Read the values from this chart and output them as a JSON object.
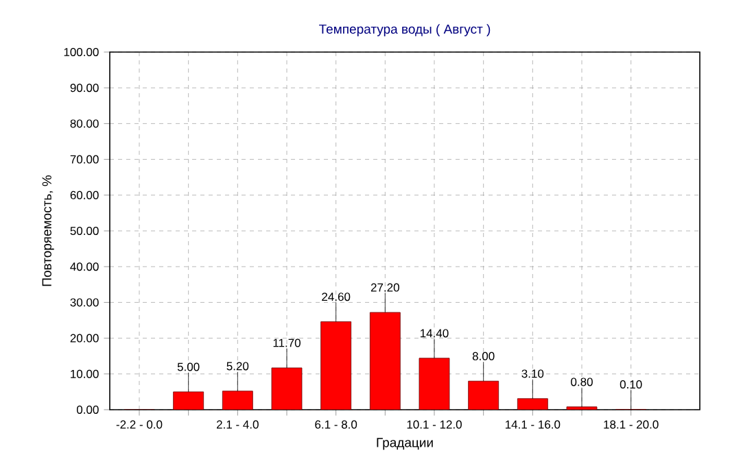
{
  "chart_data": {
    "type": "bar",
    "title": "Температура воды    ( Август )",
    "xlabel": "Градации",
    "ylabel": "Повторяемость, %",
    "categories": [
      "-2.2 - 0.0",
      null,
      "2.1 - 4.0",
      null,
      "6.1 - 8.0",
      null,
      "10.1 - 12.0",
      null,
      "14.1 - 16.0",
      null,
      "18.1 - 20.0"
    ],
    "values": [
      0,
      5.0,
      5.2,
      11.7,
      24.6,
      27.2,
      14.4,
      8.0,
      3.1,
      0.8,
      0.1
    ],
    "value_labels": [
      null,
      "5.00",
      "5.20",
      "11.70",
      "24.60",
      "27.20",
      "14.40",
      "8.00",
      "3.10",
      "0.80",
      "0.10"
    ],
    "color": "#ff0000",
    "ylim": [
      0,
      100
    ],
    "yticks": [
      {
        "value": 0,
        "label": "0.00"
      },
      {
        "value": 10,
        "label": "10.00"
      },
      {
        "value": 20,
        "label": "20.00"
      },
      {
        "value": 30,
        "label": "30.00"
      },
      {
        "value": 40,
        "label": "40.00"
      },
      {
        "value": 50,
        "label": "50.00"
      },
      {
        "value": 60,
        "label": "60.00"
      },
      {
        "value": 70,
        "label": "70.00"
      },
      {
        "value": 80,
        "label": "80.00"
      },
      {
        "value": 90,
        "label": "90.00"
      },
      {
        "value": 100,
        "label": "100.00"
      }
    ],
    "grid": true
  }
}
